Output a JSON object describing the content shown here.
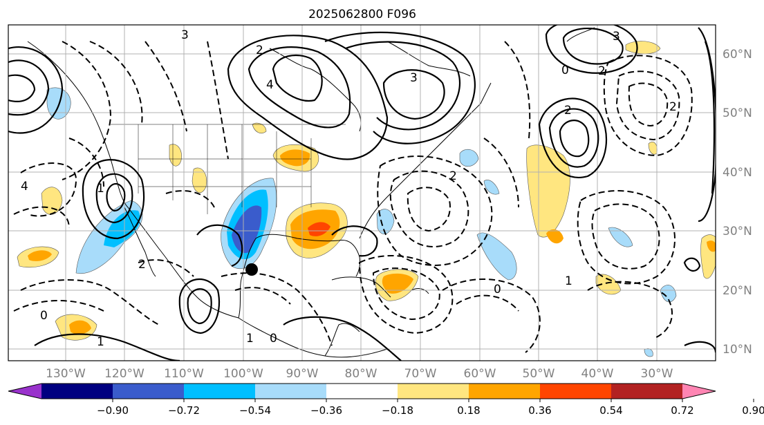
{
  "title": "2025062800 F096",
  "lon_labels": [
    "130°W",
    "120°W",
    "110°W",
    "100°W",
    "90°W",
    "80°W",
    "70°W",
    "60°W",
    "50°W",
    "40°W",
    "30°W"
  ],
  "lat_labels": [
    "60°N",
    "50°N",
    "40°N",
    "30°N",
    "20°N",
    "10°N"
  ],
  "colorbar": {
    "ticks": [
      "−0.90",
      "−0.72",
      "−0.54",
      "−0.36",
      "−0.18",
      "0.18",
      "0.36",
      "0.54",
      "0.72",
      "0.90"
    ],
    "colors": [
      "#9932cc",
      "#000080",
      "#3a5ccc",
      "#00bfff",
      "#a8dcfa",
      "#ffffff",
      "#ffe680",
      "#ffa500",
      "#ff4500",
      "#b22222",
      "#ff85b3"
    ]
  },
  "contour_labels": [
    "3",
    "2",
    "4",
    "3",
    "1",
    "2",
    "0",
    "2",
    "3",
    "4",
    "2",
    "1",
    "0",
    "1",
    "2",
    "0",
    "2",
    "1",
    "0"
  ],
  "colors": {
    "frame": "#000000",
    "grid": "#b0b0b0",
    "axis_labels": "#808080"
  },
  "marker": "storm-center-marker"
}
